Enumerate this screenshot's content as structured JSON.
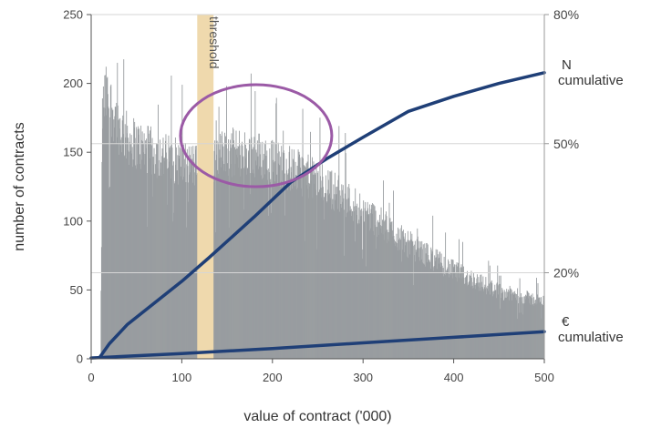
{
  "chart_data": {
    "type": "bar",
    "xlabel": "value of contract ('000)",
    "ylabel": "number of contracts",
    "xlim": [
      0,
      500
    ],
    "ylim": [
      0,
      250
    ],
    "x_ticks": [
      "0",
      "100",
      "200",
      "300",
      "400",
      "500"
    ],
    "y_ticks": [
      "0",
      "50",
      "100",
      "150",
      "200",
      "250"
    ],
    "right_axis": {
      "range": [
        0,
        0.8
      ],
      "ticks": [
        {
          "label": "80%",
          "value": 0.8
        },
        {
          "label": "50%",
          "value": 0.5
        },
        {
          "label": "20%",
          "value": 0.2
        }
      ]
    },
    "histogram": {
      "color": "#999da0",
      "anchors_x": [
        10,
        12,
        15,
        20,
        30,
        40,
        60,
        80,
        100,
        120,
        150,
        180,
        200,
        230,
        260,
        300,
        350,
        400,
        450,
        500
      ],
      "anchors_count": [
        0,
        180,
        195,
        190,
        172,
        163,
        155,
        150,
        145,
        142,
        153,
        152,
        146,
        138,
        128,
        110,
        85,
        65,
        50,
        42
      ]
    },
    "series": [
      {
        "name": "N\ncumulative",
        "color": "#1f3f77",
        "x": [
          10,
          20,
          40,
          100,
          130,
          180,
          220,
          260,
          300,
          350,
          400,
          450,
          500
        ],
        "y": [
          0.005,
          0.035,
          0.08,
          0.18,
          0.235,
          0.33,
          0.41,
          0.465,
          0.515,
          0.575,
          0.61,
          0.64,
          0.665
        ]
      },
      {
        "name": "€\ncumulative",
        "color": "#1f3f77",
        "x": [
          0,
          100,
          200,
          300,
          400,
          500
        ],
        "y": [
          0.002,
          0.012,
          0.024,
          0.037,
          0.05,
          0.063
        ]
      }
    ],
    "annotations": [
      {
        "type": "band",
        "label": "threshold",
        "x_range": [
          117,
          135
        ],
        "color": "#efd9ad"
      },
      {
        "type": "circle",
        "cx": 182,
        "cy": 162,
        "rx": 83,
        "ry": 56,
        "color": "#9b5aa6"
      }
    ]
  }
}
